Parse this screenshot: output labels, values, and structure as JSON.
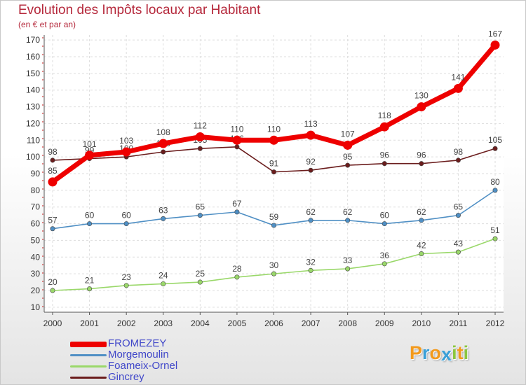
{
  "chart_data": {
    "type": "line",
    "title": "Evolution des Impôts locaux par Habitant",
    "subtitle": "(en € et par an)",
    "xlabel": "",
    "ylabel": "",
    "x": [
      "2000",
      "2001",
      "2002",
      "2003",
      "2004",
      "2005",
      "2006",
      "2007",
      "2008",
      "2009",
      "2010",
      "2011",
      "2012"
    ],
    "ylim": [
      7,
      173
    ],
    "yticks": [
      10,
      20,
      30,
      40,
      50,
      60,
      70,
      80,
      90,
      100,
      110,
      120,
      130,
      140,
      150,
      160,
      170
    ],
    "grid": true,
    "legend_position": "bottom-left",
    "series": [
      {
        "name": "Gincrey",
        "color": "#6b1d1d",
        "values": [
          98,
          99,
          100,
          103,
          105,
          106,
          91,
          92,
          95,
          96,
          96,
          98,
          105
        ]
      },
      {
        "name": "Foameix-Ornel",
        "color": "#9ad86a",
        "values": [
          20,
          21,
          23,
          24,
          25,
          28,
          30,
          32,
          33,
          36,
          42,
          43,
          51
        ]
      },
      {
        "name": "Morgemoulin",
        "color": "#4f8fc4",
        "values": [
          57,
          60,
          60,
          63,
          65,
          67,
          59,
          62,
          62,
          60,
          62,
          65,
          80
        ]
      },
      {
        "name": "FROMEZEY",
        "color": "#ee0000",
        "values": [
          85,
          101,
          103,
          108,
          112,
          110,
          110,
          113,
          107,
          118,
          130,
          141,
          167
        ]
      }
    ]
  },
  "legend_order": [
    "FROMEZEY",
    "Morgemoulin",
    "Foameix-Ornel",
    "Gincrey"
  ],
  "logo": {
    "letters": [
      "P",
      "r",
      "o",
      "x",
      "i",
      "t",
      "i"
    ],
    "colors": [
      "#f39a1c",
      "#3aa0d8",
      "#f39a1c",
      "#3aa0d8",
      "#8cc63f",
      "#f39a1c",
      "#8cc63f"
    ]
  }
}
